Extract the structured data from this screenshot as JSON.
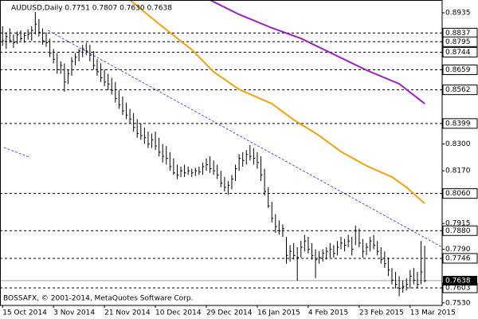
{
  "chart_data": {
    "type": "ohlc",
    "title": "AUDUSD,Daily  0.7751 0.7807 0.7630 0.7638",
    "footer": "BOSSAFX, © 2001-2014, MetaQuotes Software Corp.",
    "xlim": [
      -0.7,
      120.8
    ],
    "ylim": [
      0.7518,
      0.8997
    ],
    "xticks": [
      {
        "value": 0,
        "label": "15 Oct 2014"
      },
      {
        "value": 14,
        "label": "3 Nov 2014"
      },
      {
        "value": 28,
        "label": "21 Nov 2014"
      },
      {
        "value": 42,
        "label": "10 Dec 2014"
      },
      {
        "value": 56,
        "label": "29 Dec 2014"
      },
      {
        "value": 70,
        "label": "16 Jan 2015"
      },
      {
        "value": 84,
        "label": "4 Feb 2015"
      },
      {
        "value": 98,
        "label": "23 Feb 2015"
      },
      {
        "value": 112,
        "label": "13 Mar 2015"
      }
    ],
    "yticks": [
      0.8935,
      {
        "value": 0.83,
        "label": "0.8300"
      },
      {
        "value": 0.817,
        "label": "0.8170"
      },
      0.7915,
      {
        "value": 0.779,
        "label": "0.7790"
      },
      {
        "value": 0.753,
        "label": "0.7530"
      }
    ],
    "levels": [
      0.8837,
      0.8795,
      0.8744,
      0.8659,
      0.8562,
      0.8399,
      {
        "value": 0.806,
        "label": "0.8060"
      },
      {
        "value": 0.788,
        "label": "0.7880"
      },
      0.7746,
      0.7603
    ],
    "current_price": 0.7638,
    "bar_color": "#000000",
    "bars": {
      "high": [
        0.887,
        0.884,
        0.886,
        0.883,
        0.8845,
        0.885,
        0.884,
        0.8855,
        0.887,
        0.8939,
        0.8905,
        0.886,
        0.884,
        0.881,
        0.876,
        0.874,
        0.87,
        0.869,
        0.866,
        0.872,
        0.874,
        0.876,
        0.878,
        0.879,
        0.878,
        0.875,
        0.871,
        0.869,
        0.866,
        0.864,
        0.862,
        0.86,
        0.856,
        0.853,
        0.85,
        0.847,
        0.845,
        0.842,
        0.84,
        0.838,
        0.836,
        0.835,
        0.836,
        0.833,
        0.83,
        0.829,
        0.826,
        0.823,
        0.82,
        0.819,
        0.82,
        0.819,
        0.818,
        0.8185,
        0.819,
        0.821,
        0.823,
        0.824,
        0.822,
        0.82,
        0.817,
        0.814,
        0.812,
        0.815,
        0.82,
        0.825,
        0.826,
        0.827,
        0.8295,
        0.828,
        0.826,
        0.824,
        0.818,
        0.809,
        0.802,
        0.796,
        0.793,
        0.791,
        0.785,
        0.781,
        0.782,
        0.78,
        0.783,
        0.786,
        0.785,
        0.782,
        0.779,
        0.778,
        0.779,
        0.78,
        0.782,
        0.781,
        0.783,
        0.785,
        0.784,
        0.786,
        0.785,
        0.7905,
        0.789,
        0.784,
        0.782,
        0.785,
        0.786,
        0.783,
        0.78,
        0.778,
        0.775,
        0.77,
        0.768,
        0.766,
        0.764,
        0.765,
        0.769,
        0.77,
        0.768,
        0.783,
        0.7807
      ],
      "low": [
        0.8775,
        0.876,
        0.879,
        0.8765,
        0.8785,
        0.88,
        0.879,
        0.8805,
        0.88,
        0.883,
        0.882,
        0.878,
        0.877,
        0.872,
        0.869,
        0.864,
        0.864,
        0.8553,
        0.859,
        0.863,
        0.868,
        0.87,
        0.872,
        0.873,
        0.87,
        0.866,
        0.863,
        0.86,
        0.858,
        0.856,
        0.854,
        0.85,
        0.847,
        0.844,
        0.842,
        0.84,
        0.836,
        0.833,
        0.832,
        0.83,
        0.828,
        0.828,
        0.827,
        0.824,
        0.821,
        0.82,
        0.817,
        0.815,
        0.813,
        0.814,
        0.814,
        0.815,
        0.814,
        0.8145,
        0.815,
        0.815,
        0.817,
        0.816,
        0.815,
        0.813,
        0.809,
        0.807,
        0.8055,
        0.808,
        0.812,
        0.817,
        0.819,
        0.82,
        0.822,
        0.82,
        0.818,
        0.812,
        0.805,
        0.799,
        0.792,
        0.787,
        0.786,
        0.785,
        0.772,
        0.773,
        0.774,
        0.7638,
        0.775,
        0.778,
        0.777,
        0.774,
        0.765,
        0.772,
        0.773,
        0.774,
        0.775,
        0.775,
        0.776,
        0.779,
        0.778,
        0.78,
        0.776,
        0.781,
        0.78,
        0.775,
        0.776,
        0.778,
        0.779,
        0.776,
        0.772,
        0.77,
        0.766,
        0.762,
        0.76,
        0.7563,
        0.758,
        0.759,
        0.76,
        0.762,
        0.76,
        0.762,
        0.763
      ],
      "close": [
        0.88,
        0.882,
        0.88,
        0.879,
        0.883,
        0.881,
        0.8825,
        0.883,
        0.885,
        0.888,
        0.884,
        0.88,
        0.879,
        0.874,
        0.871,
        0.866,
        0.868,
        0.86,
        0.864,
        0.87,
        0.872,
        0.875,
        0.876,
        0.875,
        0.873,
        0.868,
        0.865,
        0.862,
        0.86,
        0.859,
        0.856,
        0.852,
        0.849,
        0.846,
        0.844,
        0.842,
        0.838,
        0.835,
        0.834,
        0.833,
        0.83,
        0.832,
        0.829,
        0.826,
        0.824,
        0.823,
        0.819,
        0.816,
        0.815,
        0.817,
        0.816,
        0.817,
        0.816,
        0.817,
        0.8165,
        0.819,
        0.82,
        0.818,
        0.817,
        0.815,
        0.811,
        0.809,
        0.81,
        0.813,
        0.818,
        0.823,
        0.822,
        0.825,
        0.824,
        0.823,
        0.821,
        0.815,
        0.807,
        0.8,
        0.794,
        0.79,
        0.788,
        0.789,
        0.776,
        0.778,
        0.776,
        0.775,
        0.78,
        0.783,
        0.779,
        0.776,
        0.774,
        0.775,
        0.777,
        0.778,
        0.779,
        0.777,
        0.78,
        0.782,
        0.781,
        0.783,
        0.779,
        0.788,
        0.782,
        0.778,
        0.78,
        0.783,
        0.781,
        0.778,
        0.774,
        0.772,
        0.769,
        0.764,
        0.762,
        0.76,
        0.761,
        0.762,
        0.766,
        0.764,
        0.762,
        0.768,
        0.7638
      ]
    },
    "series": [
      {
        "color": "#f0a30a",
        "x": [
          35,
          43,
          52,
          58,
          65,
          74,
          80,
          87,
          93,
          100,
          107,
          111,
          116
        ],
        "values": [
          0.8997,
          0.8881,
          0.8757,
          0.8649,
          0.8564,
          0.8495,
          0.8417,
          0.8341,
          0.8263,
          0.8194,
          0.814,
          0.809,
          0.8012
        ]
      },
      {
        "color": "#9b1fbf",
        "x": [
          57,
          65,
          74,
          82,
          91,
          100,
          109,
          116
        ],
        "values": [
          0.8997,
          0.8927,
          0.8862,
          0.8811,
          0.8734,
          0.8657,
          0.8591,
          0.8495
        ]
      }
    ],
    "trendlines": [
      {
        "color": "#1f2fe0",
        "x": [
          12.5,
          120.8
        ],
        "values": [
          0.885,
          0.78
        ]
      },
      {
        "color": "#1f2fe0",
        "x": [
          0.4,
          7.4
        ],
        "values": [
          0.8283,
          0.8236
        ]
      }
    ]
  }
}
